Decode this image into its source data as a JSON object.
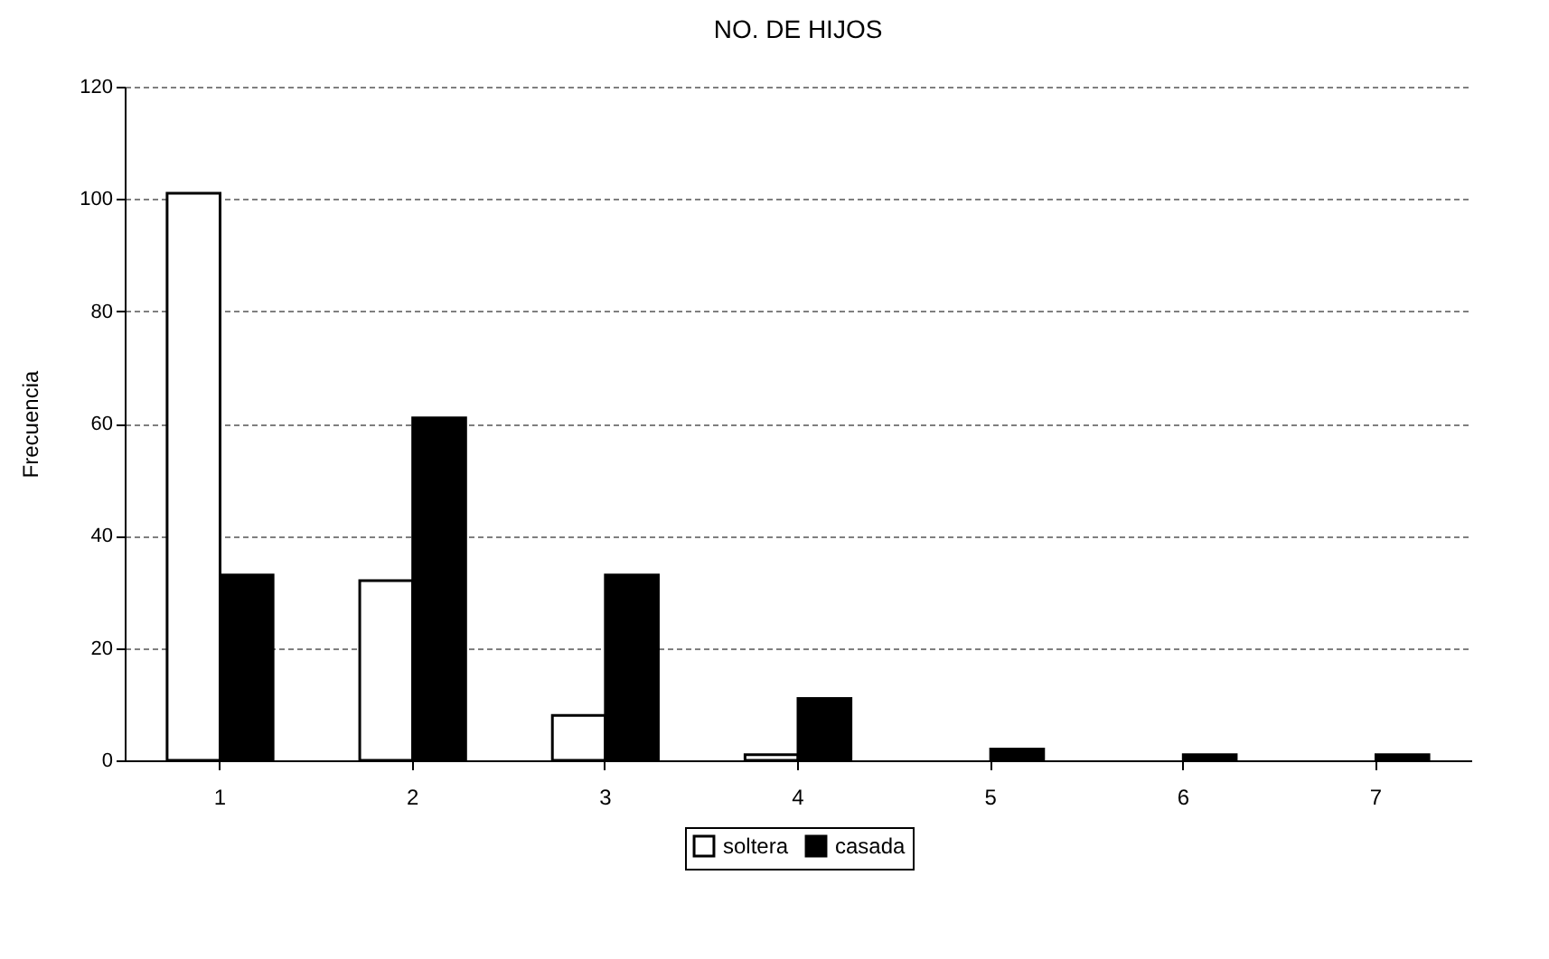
{
  "chart_data": {
    "type": "bar",
    "title": "NO. DE HIJOS",
    "ylabel": "Frecuencia",
    "categories": [
      "1",
      "2",
      "3",
      "4",
      "5",
      "6",
      "7"
    ],
    "series": [
      {
        "name": "soltera",
        "color": "#ffffff",
        "values": [
          101,
          32,
          8,
          1,
          0,
          0,
          0
        ]
      },
      {
        "name": "casada",
        "color": "#000000",
        "values": [
          33,
          61,
          33,
          11,
          2,
          1,
          1
        ]
      }
    ],
    "ylim": [
      0,
      120
    ],
    "yticks": [
      0,
      20,
      40,
      60,
      80,
      100,
      120
    ],
    "grid": "y",
    "legend": "bottom"
  }
}
